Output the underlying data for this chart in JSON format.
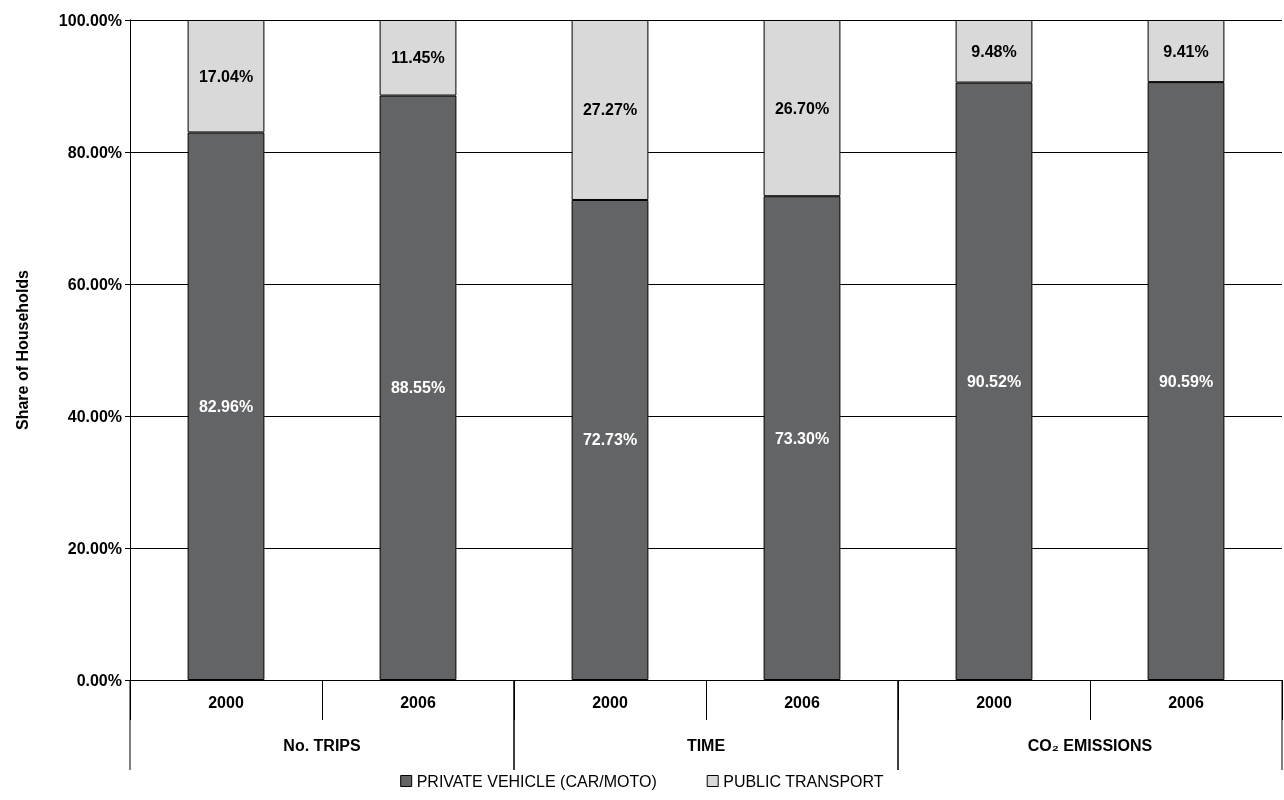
{
  "chart_data": {
    "type": "bar",
    "stacked": true,
    "ylabel": "Share of Households",
    "categories": [
      "2000",
      "2006",
      "2000",
      "2006",
      "2000",
      "2006"
    ],
    "annotations": [
      "No. TRIPS",
      "TIME",
      "CO₂ EMISSIONS"
    ],
    "series": [
      {
        "name": "PRIVATE VEHICLE (CAR/MOTO)",
        "color": "#636466",
        "values": [
          82.96,
          88.55,
          72.73,
          73.3,
          90.52,
          90.59
        ],
        "value_labels": [
          "82.96%",
          "88.55%",
          "72.73%",
          "73.30%",
          "90.52%",
          "90.59%"
        ]
      },
      {
        "name": "PUBLIC TRANSPORT",
        "color": "#d9d9d9",
        "values": [
          17.04,
          11.45,
          27.27,
          26.7,
          9.48,
          9.41
        ],
        "value_labels": [
          "17.04%",
          "11.45%",
          "27.27%",
          "26.70%",
          "9.48%",
          "9.41%"
        ]
      }
    ],
    "ylim": [
      0,
      100
    ],
    "yticks": [
      {
        "value": 0,
        "label": "0.00%"
      },
      {
        "value": 20,
        "label": "20.00%"
      },
      {
        "value": 40,
        "label": "40.00%"
      },
      {
        "value": 60,
        "label": "60.00%"
      },
      {
        "value": 80,
        "label": "80.00%"
      },
      {
        "value": 100,
        "label": "100.00%"
      }
    ],
    "grid": "y",
    "legend": "bottom"
  }
}
